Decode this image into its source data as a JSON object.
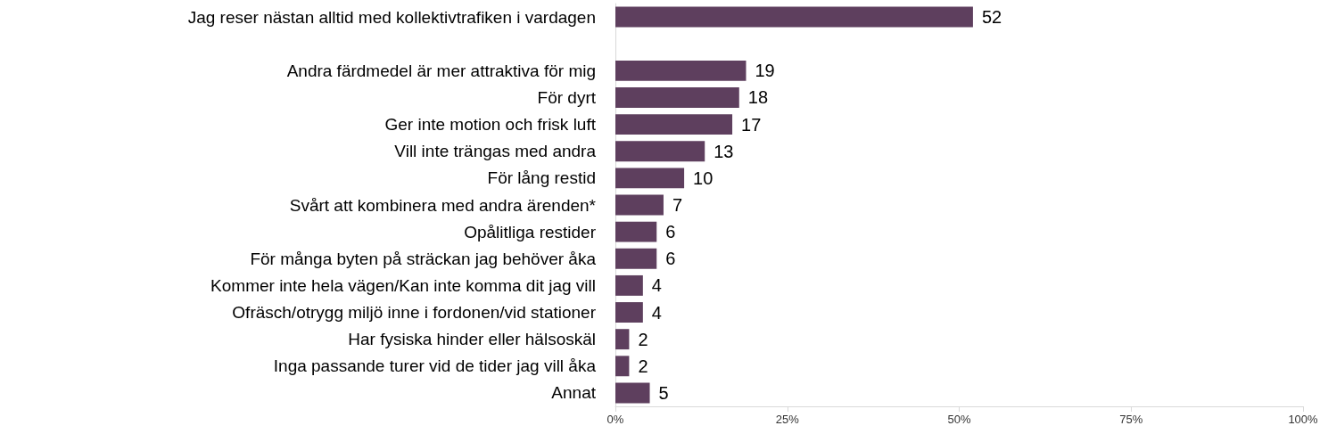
{
  "chart_data": {
    "type": "bar",
    "orientation": "horizontal",
    "categories": [
      "Jag reser nästan alltid med kollektivtrafiken i vardagen",
      null,
      "Andra färdmedel är mer attraktiva för mig",
      "För dyrt",
      "Ger inte motion och frisk luft",
      "Vill inte trängas med andra",
      "För lång restid",
      "Svårt att kombinera med andra ärenden*",
      "Opålitliga restider",
      "För många byten på sträckan jag behöver åka",
      "Kommer inte hela vägen/Kan inte komma dit jag vill",
      "Ofräsch/otrygg miljö inne i fordonen/vid stationer",
      "Har fysiska hinder eller hälsoskäl",
      "Inga passande turer vid de tider jag vill åka",
      "Annat"
    ],
    "values": [
      52,
      null,
      19,
      18,
      17,
      13,
      10,
      7,
      6,
      6,
      4,
      4,
      2,
      2,
      5
    ],
    "color": "#5e3f5e",
    "xlim": [
      0,
      100
    ],
    "xticks": [
      {
        "value": 0,
        "label": "0%"
      },
      {
        "value": 25,
        "label": "25%"
      },
      {
        "value": 50,
        "label": "50%"
      },
      {
        "value": 75,
        "label": "75%"
      },
      {
        "value": 100,
        "label": "100%"
      }
    ],
    "data_labels": true,
    "grid": false
  }
}
